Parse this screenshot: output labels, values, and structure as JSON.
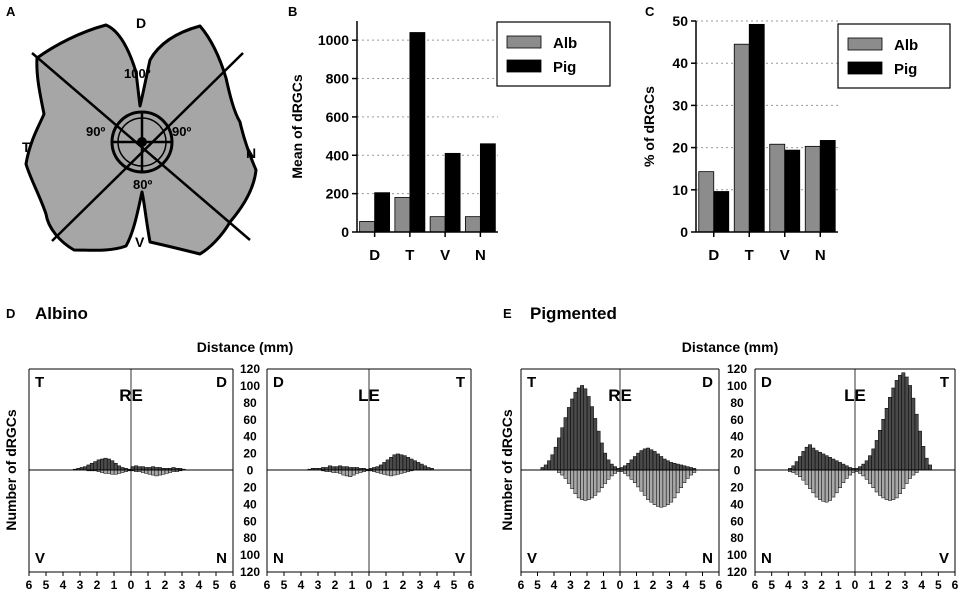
{
  "colors": {
    "alb": "#8c8c8c",
    "pig": "#000000",
    "retina": "#a6a6a6",
    "grid": "#9a9a9a",
    "ink": "#000000",
    "dark_bar": "#4a4a4a",
    "light_bar": "#a8a8a8"
  },
  "panel_labels": {
    "a": "A",
    "b": "B",
    "c": "C",
    "d": "D",
    "e": "E"
  },
  "retina": {
    "dorsal": "D",
    "temporal": "T",
    "nasal": "N",
    "ventral": "V",
    "angle_top": "100º",
    "angle_left": "90º",
    "angle_right": "90º",
    "angle_bottom": "80º"
  },
  "section_titles": {
    "albino": "Albino",
    "pigmented": "Pigmented"
  },
  "hist_common": {
    "distance_label": "Distance (mm)",
    "ylabel": "Number of dRGCs",
    "y_ticks": [
      "120",
      "100",
      "80",
      "60",
      "40",
      "20",
      "0",
      "20",
      "40",
      "60",
      "80",
      "100",
      "120"
    ],
    "x_ticks_left": [
      "6",
      "5",
      "4",
      "3",
      "2",
      "1",
      "0",
      "1",
      "2",
      "3",
      "4",
      "5",
      "6"
    ],
    "x_ticks_right": [
      "6",
      "5",
      "4",
      "3",
      "2",
      "1",
      "0",
      "1",
      "2",
      "3",
      "4",
      "5",
      "6"
    ]
  },
  "hist_panels": {
    "alb_re": {
      "eye": "RE",
      "tl": "T",
      "tr": "D",
      "bl": "V",
      "br": "N"
    },
    "alb_le": {
      "eye": "LE",
      "tl": "D",
      "tr": "T",
      "bl": "N",
      "br": "V"
    },
    "pig_re": {
      "eye": "RE",
      "tl": "T",
      "tr": "D",
      "bl": "V",
      "br": "N"
    },
    "pig_le": {
      "eye": "LE",
      "tl": "D",
      "tr": "T",
      "bl": "N",
      "br": "V"
    }
  },
  "chart_data": [
    {
      "id": "B",
      "type": "bar",
      "title": "",
      "ylabel": "Mean of dRGCs",
      "xlabel": "",
      "categories": [
        "D",
        "T",
        "V",
        "N"
      ],
      "ylim": [
        0,
        1100
      ],
      "yticks": [
        "0",
        "200",
        "400",
        "600",
        "800",
        "1000"
      ],
      "legend_position": "top-right",
      "series": [
        {
          "name": "Alb",
          "values": [
            55,
            180,
            80,
            80
          ]
        },
        {
          "name": "Pig",
          "values": [
            205,
            1040,
            410,
            460
          ]
        }
      ]
    },
    {
      "id": "C",
      "type": "bar",
      "title": "",
      "ylabel": "% of dRGCs",
      "xlabel": "",
      "categories": [
        "D",
        "T",
        "V",
        "N"
      ],
      "ylim": [
        0,
        50
      ],
      "yticks": [
        "0",
        "10",
        "20",
        "30",
        "40",
        "50"
      ],
      "legend_position": "top-right",
      "series": [
        {
          "name": "Alb",
          "values": [
            14.3,
            44.5,
            20.8,
            20.3
          ]
        },
        {
          "name": "Pig",
          "values": [
            9.6,
            49.2,
            19.4,
            21.7
          ]
        }
      ]
    },
    {
      "id": "D-RE",
      "type": "bar",
      "section": "Albino",
      "eye": "RE",
      "xlabel": "Distance (mm)",
      "ylabel": "Number of dRGCs",
      "ylim": [
        -120,
        120
      ],
      "bin_mm": 0.2,
      "x_direction_left": "6 to 0 (T/V side)",
      "x_direction_right": "0 to 6 (D/N side)",
      "series": [
        {
          "name": "T (up, left axis)",
          "values": [
            1,
            2,
            3,
            5,
            8,
            11,
            13,
            14,
            13,
            12,
            10,
            8,
            6,
            4,
            3,
            2,
            1
          ]
        },
        {
          "name": "V (down, left axis)",
          "values": [
            1,
            2,
            3,
            4,
            5,
            5,
            4,
            4,
            3,
            2,
            1,
            1,
            1
          ]
        },
        {
          "name": "D (up, right axis)",
          "values": [
            4,
            5,
            4,
            4,
            3,
            3,
            4,
            3,
            3,
            2,
            2,
            2,
            3,
            2,
            2,
            1
          ]
        },
        {
          "name": "N (down, right axis)",
          "values": [
            1,
            2,
            2,
            3,
            4,
            5,
            6,
            7,
            6,
            5,
            4,
            3,
            2,
            2,
            1
          ]
        }
      ]
    },
    {
      "id": "D-LE",
      "type": "bar",
      "section": "Albino",
      "eye": "LE",
      "xlabel": "Distance (mm)",
      "ylabel": "Number of dRGCs",
      "ylim": [
        -120,
        120
      ],
      "bin_mm": 0.2,
      "x_direction_left": "6 to 0 (D/N side)",
      "x_direction_right": "0 to 6 (T/V side)",
      "series": [
        {
          "name": "D (up, left axis)",
          "values": [
            1,
            2,
            2,
            3,
            3,
            3,
            4,
            4,
            5,
            4,
            4,
            5,
            3,
            3,
            2,
            2,
            2,
            1
          ]
        },
        {
          "name": "N (down, left axis)",
          "values": [
            1,
            2,
            3,
            4,
            6,
            8,
            7,
            6,
            4,
            3,
            3,
            2,
            2,
            1
          ]
        },
        {
          "name": "T (up, right axis)",
          "values": [
            2,
            3,
            4,
            6,
            9,
            12,
            15,
            18,
            19,
            18,
            17,
            15,
            13,
            11,
            9,
            7,
            5,
            3,
            2
          ]
        },
        {
          "name": "V (down, right axis)",
          "values": [
            1,
            2,
            3,
            4,
            5,
            6,
            7,
            6,
            5,
            4,
            3,
            2,
            1
          ]
        }
      ]
    },
    {
      "id": "E-RE",
      "type": "bar",
      "section": "Pigmented",
      "eye": "RE",
      "xlabel": "Distance (mm)",
      "ylabel": "Number of dRGCs",
      "ylim": [
        -120,
        120
      ],
      "bin_mm": 0.2,
      "x_direction_left": "6 to 0 (T/V side)",
      "x_direction_right": "0 to 6 (D/N side)",
      "series": [
        {
          "name": "T (up, left axis)",
          "values": [
            2,
            4,
            7,
            12,
            20,
            32,
            46,
            61,
            75,
            87,
            96,
            100,
            97,
            92,
            84,
            74,
            62,
            50,
            38,
            27,
            18,
            11,
            6,
            3
          ]
        },
        {
          "name": "V (down, left axis)",
          "values": [
            2,
            4,
            7,
            11,
            16,
            21,
            26,
            30,
            33,
            35,
            36,
            35,
            33,
            28,
            22,
            16,
            10,
            6,
            3
          ]
        },
        {
          "name": "D (up, right axis)",
          "values": [
            3,
            5,
            8,
            12,
            16,
            20,
            23,
            25,
            26,
            24,
            22,
            19,
            16,
            13,
            11,
            9,
            8,
            7,
            6,
            5,
            4,
            3,
            2
          ]
        },
        {
          "name": "N (down, right axis)",
          "values": [
            2,
            4,
            7,
            11,
            15,
            20,
            25,
            30,
            35,
            38,
            41,
            43,
            44,
            43,
            41,
            38,
            33,
            27,
            21,
            15,
            10,
            6,
            3
          ]
        }
      ]
    },
    {
      "id": "E-LE",
      "type": "bar",
      "section": "Pigmented",
      "eye": "LE",
      "xlabel": "Distance (mm)",
      "ylabel": "Number of dRGCs",
      "ylim": [
        -120,
        120
      ],
      "bin_mm": 0.2,
      "x_direction_left": "6 to 0 (D/N side)",
      "x_direction_right": "0 to 6 (T/V side)",
      "series": [
        {
          "name": "D (up, left axis)",
          "values": [
            2,
            3,
            5,
            7,
            9,
            11,
            13,
            15,
            17,
            19,
            21,
            23,
            26,
            30,
            27,
            22,
            16,
            10,
            5,
            2
          ]
        },
        {
          "name": "N (down, left axis)",
          "values": [
            3,
            6,
            10,
            15,
            21,
            27,
            32,
            36,
            38,
            37,
            35,
            32,
            27,
            22,
            17,
            12,
            8,
            5,
            3,
            2
          ]
        },
        {
          "name": "T (up, right axis)",
          "values": [
            2,
            4,
            7,
            11,
            17,
            25,
            35,
            47,
            60,
            73,
            86,
            97,
            106,
            112,
            115,
            110,
            100,
            85,
            66,
            46,
            28,
            14,
            6
          ]
        },
        {
          "name": "V (down, right axis)",
          "values": [
            2,
            4,
            7,
            11,
            16,
            21,
            26,
            30,
            33,
            35,
            36,
            35,
            33,
            28,
            22,
            16,
            10,
            6,
            3
          ]
        }
      ]
    }
  ]
}
